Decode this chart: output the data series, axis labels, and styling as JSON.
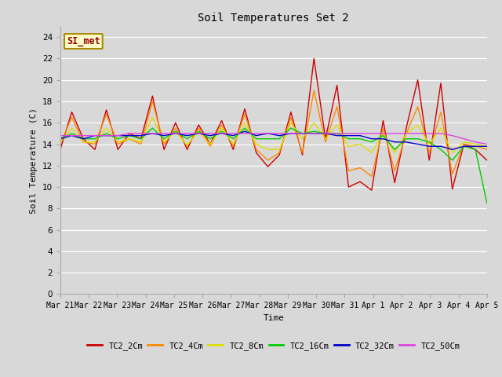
{
  "title": "Soil Temperatures Set 2",
  "xlabel": "Time",
  "ylabel": "Soil Temperature (C)",
  "ylim": [
    0,
    25
  ],
  "yticks": [
    0,
    2,
    4,
    6,
    8,
    10,
    12,
    14,
    16,
    18,
    20,
    22,
    24
  ],
  "bg_color": "#d8d8d8",
  "annotation_text": "SI_met",
  "annotation_bg": "#ffffcc",
  "annotation_border": "#aa8800",
  "series_names": [
    "TC2_2Cm",
    "TC2_4Cm",
    "TC2_8Cm",
    "TC2_16Cm",
    "TC2_32Cm",
    "TC2_50Cm"
  ],
  "series_colors": [
    "#cc0000",
    "#ff8800",
    "#dddd00",
    "#00cc00",
    "#0000cc",
    "#dd44dd"
  ],
  "x_labels": [
    "Mar 21",
    "Mar 22",
    "Mar 23",
    "Mar 24",
    "Mar 25",
    "Mar 26",
    "Mar 27",
    "Mar 28",
    "Mar 29",
    "Mar 30",
    "Mar 31",
    "Apr 1",
    "Apr 2",
    "Apr 3",
    "Apr 4",
    "Apr 5"
  ],
  "TC2_2Cm": [
    13.5,
    17.0,
    14.5,
    13.5,
    17.2,
    13.5,
    15.0,
    14.5,
    18.5,
    13.5,
    16.0,
    13.5,
    15.8,
    14.0,
    16.2,
    13.5,
    17.3,
    13.2,
    11.9,
    13.0,
    17.0,
    13.0,
    22.0,
    14.5,
    19.5,
    10.0,
    10.5,
    9.7,
    16.2,
    10.4,
    15.5,
    20.0,
    12.5,
    19.7,
    9.8,
    14.0,
    13.5,
    12.5
  ],
  "TC2_4Cm": [
    14.0,
    16.5,
    14.2,
    14.0,
    16.8,
    14.0,
    14.5,
    14.0,
    18.0,
    14.0,
    15.5,
    13.8,
    15.5,
    13.8,
    15.8,
    13.8,
    16.8,
    13.5,
    12.5,
    13.2,
    16.5,
    13.2,
    19.0,
    14.2,
    17.5,
    11.5,
    11.8,
    11.0,
    15.5,
    11.5,
    15.0,
    17.5,
    13.2,
    17.0,
    11.2,
    14.0,
    13.8,
    13.5
  ],
  "TC2_8Cm": [
    14.2,
    15.5,
    14.2,
    14.2,
    15.5,
    14.2,
    14.5,
    14.2,
    16.5,
    14.2,
    15.2,
    13.9,
    15.2,
    14.0,
    15.5,
    14.0,
    16.0,
    14.0,
    13.5,
    13.5,
    16.0,
    14.5,
    16.0,
    14.5,
    15.8,
    13.8,
    14.0,
    13.2,
    15.0,
    13.2,
    15.0,
    15.8,
    14.0,
    15.5,
    13.2,
    14.2,
    14.0,
    13.8
  ],
  "TC2_16Cm": [
    14.5,
    15.0,
    14.5,
    14.5,
    15.0,
    14.5,
    14.8,
    14.5,
    15.5,
    14.5,
    15.2,
    14.5,
    15.2,
    14.5,
    15.2,
    14.5,
    15.5,
    14.5,
    14.5,
    14.5,
    15.5,
    15.0,
    15.2,
    15.0,
    15.0,
    14.5,
    14.5,
    14.2,
    14.8,
    13.5,
    14.5,
    14.5,
    14.2,
    13.5,
    12.5,
    13.8,
    13.5,
    8.5
  ],
  "TC2_32Cm": [
    14.5,
    14.8,
    14.5,
    14.8,
    14.8,
    14.8,
    14.8,
    14.8,
    15.0,
    14.8,
    15.0,
    14.8,
    15.0,
    14.8,
    15.0,
    14.8,
    15.2,
    14.8,
    15.0,
    14.8,
    15.0,
    15.0,
    15.0,
    15.0,
    14.8,
    14.8,
    14.8,
    14.5,
    14.5,
    14.2,
    14.2,
    14.0,
    13.8,
    13.8,
    13.5,
    13.8,
    13.8,
    13.8
  ],
  "TC2_50Cm": [
    14.8,
    14.8,
    14.8,
    14.8,
    14.8,
    14.8,
    15.0,
    15.0,
    15.0,
    15.0,
    15.0,
    15.0,
    15.0,
    15.0,
    15.0,
    15.0,
    15.0,
    15.0,
    15.0,
    15.0,
    15.0,
    15.0,
    15.0,
    15.0,
    15.0,
    15.0,
    15.0,
    15.0,
    15.0,
    15.0,
    15.0,
    15.0,
    15.0,
    15.0,
    14.8,
    14.5,
    14.2,
    14.0
  ]
}
